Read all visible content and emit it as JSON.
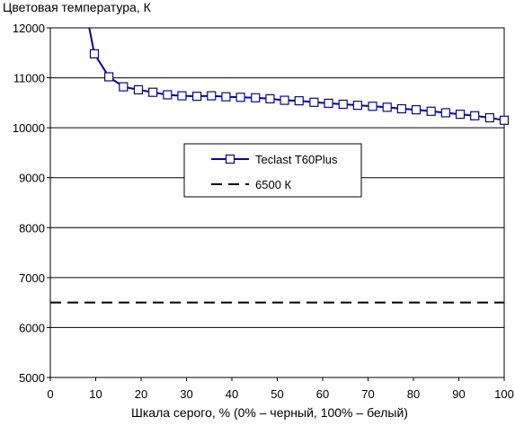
{
  "chart_data": {
    "type": "line",
    "ylabel": "Цветовая температура, К",
    "xlabel": "Шкала серого, % (0% – черный, 100% – белый)",
    "xlim": [
      0,
      100
    ],
    "ylim": [
      5000,
      12000
    ],
    "x_ticks": [
      "0",
      "10",
      "20",
      "30",
      "40",
      "50",
      "60",
      "70",
      "80",
      "90",
      "100"
    ],
    "y_ticks": [
      "5000",
      "6000",
      "7000",
      "8000",
      "9000",
      "10000",
      "11000",
      "12000"
    ],
    "grid": "horizontal",
    "legend_position": "center",
    "series": [
      {
        "name": "Teclast T60Plus",
        "color": "#0000cc",
        "marker": "open-square",
        "x": [
          9.7,
          12.9,
          16.1,
          19.4,
          22.6,
          25.8,
          29.0,
          32.3,
          35.5,
          38.7,
          41.9,
          45.2,
          48.4,
          51.6,
          54.8,
          58.1,
          61.3,
          64.5,
          67.7,
          71.0,
          74.2,
          77.4,
          80.6,
          83.9,
          87.1,
          90.3,
          93.5,
          96.8,
          100
        ],
        "y": [
          11480,
          11020,
          10820,
          10760,
          10710,
          10660,
          10640,
          10630,
          10640,
          10620,
          10610,
          10600,
          10580,
          10550,
          10540,
          10510,
          10490,
          10470,
          10450,
          10430,
          10410,
          10380,
          10360,
          10330,
          10300,
          10270,
          10240,
          10200,
          10150
        ],
        "extends_above_top_at_x": 8.5
      },
      {
        "name": "6500 К",
        "color": "#000000",
        "style": "dashed",
        "x": [
          0,
          100
        ],
        "y": [
          6500,
          6500
        ]
      }
    ]
  }
}
